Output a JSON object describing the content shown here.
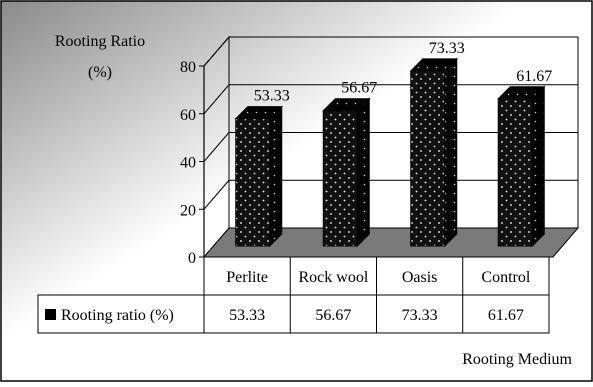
{
  "chart_data": {
    "type": "bar",
    "categories": [
      "Perlite",
      "Rock wool",
      "Oasis",
      "Control"
    ],
    "series": [
      {
        "name": "Rooting ratio (%)",
        "values": [
          53.33,
          56.67,
          73.33,
          61.67
        ]
      }
    ],
    "value_labels": [
      "53.33",
      "56.67",
      "73.33",
      "61.67"
    ],
    "ylabel_line1": "Rooting Ratio",
    "ylabel_line2": "(%)",
    "xlabel": "Rooting Medium",
    "ylim": [
      0,
      80
    ],
    "yticks": [
      0,
      20,
      40,
      60,
      80
    ],
    "ytick_labels": [
      "0",
      "20",
      "40",
      "60",
      "80"
    ],
    "grid": true,
    "legend": "data-table-below",
    "colors": {
      "bar": "#111111",
      "dots": "#ffffff",
      "background_light": "#ffffff",
      "background_dark": "#8a8a8a"
    }
  }
}
